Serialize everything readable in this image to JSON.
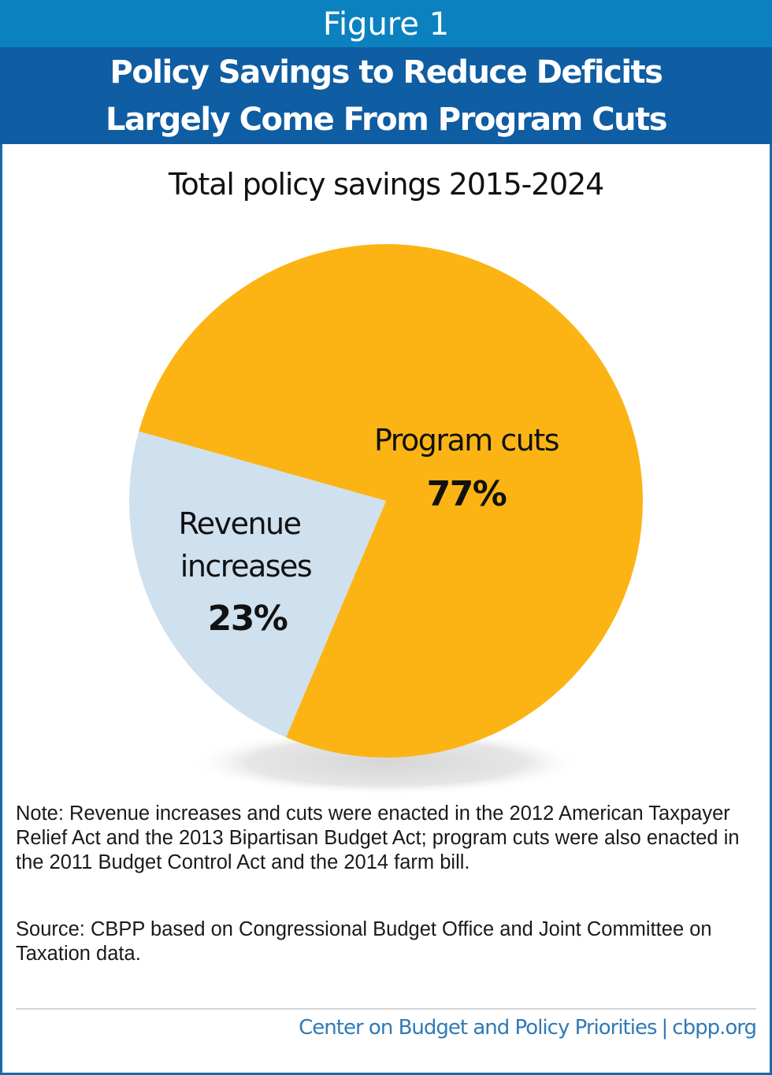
{
  "header": {
    "figure_label": "Figure 1",
    "title_line1": "Policy Savings to Reduce Deficits",
    "title_line2": "Largely Come From Program Cuts"
  },
  "colors": {
    "figure_band": "#0b82bf",
    "title_band": "#0f5da3",
    "program_cuts": "#fbb414",
    "revenue_increases": "#cfe0ef",
    "credit_text": "#2f7ab8"
  },
  "chart_data": {
    "type": "pie",
    "title": "Total policy savings 2015-2024",
    "slices": [
      {
        "name": "Program cuts",
        "value": 77,
        "label": "77%",
        "color": "#fbb414"
      },
      {
        "name": "Revenue increases",
        "value": 23,
        "label": "23%",
        "color": "#cfe0ef",
        "label_lines": [
          "Revenue",
          "increases"
        ]
      }
    ],
    "unit": "percent",
    "legend": "none"
  },
  "footer": {
    "note": "Note: Revenue increases and cuts were enacted in the 2012 American Taxpayer Relief Act and the 2013 Bipartisan Budget Act; program cuts were also enacted in the 2011 Budget Control Act and the 2014 farm bill.",
    "source": "Source: CBPP based on Congressional Budget Office and Joint Committee on Taxation data.",
    "org_name": "Center on Budget and Policy Priorities",
    "separator": "|",
    "site": "cbpp.org"
  }
}
